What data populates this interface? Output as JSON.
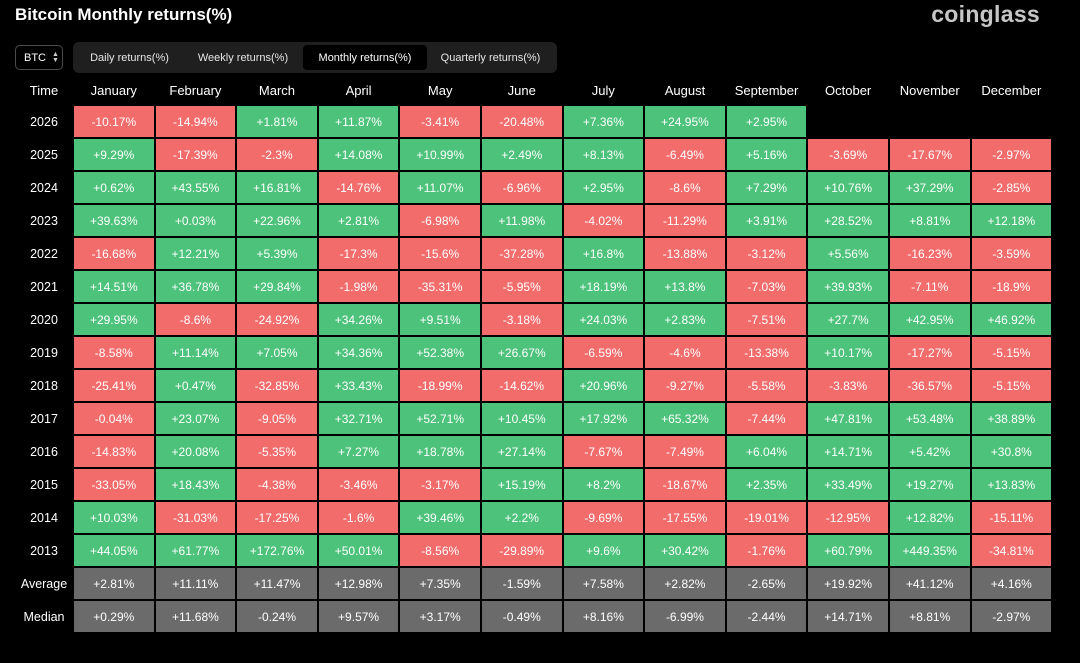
{
  "header": {
    "title": "Bitcoin Monthly returns(%)",
    "brand": "coinglass"
  },
  "asset_select": {
    "value": "BTC"
  },
  "tabs": [
    {
      "label": "Daily returns(%)",
      "active": false
    },
    {
      "label": "Weekly returns(%)",
      "active": false
    },
    {
      "label": "Monthly returns(%)",
      "active": true
    },
    {
      "label": "Quarterly returns(%)",
      "active": false
    }
  ],
  "colors": {
    "positive": "#4cc27a",
    "negative": "#f26c6c",
    "summary": "#6b6b6b"
  },
  "table": {
    "columns": [
      "Time",
      "January",
      "February",
      "March",
      "April",
      "May",
      "June",
      "July",
      "August",
      "September",
      "October",
      "November",
      "December"
    ],
    "rows": [
      {
        "year": "2026",
        "values": [
          "-10.17%",
          "-14.94%",
          "+1.81%",
          "+11.87%",
          "-3.41%",
          "-20.48%",
          "+7.36%",
          "+24.95%",
          "+2.95%",
          "",
          "",
          ""
        ]
      },
      {
        "year": "2025",
        "values": [
          "+9.29%",
          "-17.39%",
          "-2.3%",
          "+14.08%",
          "+10.99%",
          "+2.49%",
          "+8.13%",
          "-6.49%",
          "+5.16%",
          "-3.69%",
          "-17.67%",
          "-2.97%"
        ]
      },
      {
        "year": "2024",
        "values": [
          "+0.62%",
          "+43.55%",
          "+16.81%",
          "-14.76%",
          "+11.07%",
          "-6.96%",
          "+2.95%",
          "-8.6%",
          "+7.29%",
          "+10.76%",
          "+37.29%",
          "-2.85%"
        ]
      },
      {
        "year": "2023",
        "values": [
          "+39.63%",
          "+0.03%",
          "+22.96%",
          "+2.81%",
          "-6.98%",
          "+11.98%",
          "-4.02%",
          "-11.29%",
          "+3.91%",
          "+28.52%",
          "+8.81%",
          "+12.18%"
        ]
      },
      {
        "year": "2022",
        "values": [
          "-16.68%",
          "+12.21%",
          "+5.39%",
          "-17.3%",
          "-15.6%",
          "-37.28%",
          "+16.8%",
          "-13.88%",
          "-3.12%",
          "+5.56%",
          "-16.23%",
          "-3.59%"
        ]
      },
      {
        "year": "2021",
        "values": [
          "+14.51%",
          "+36.78%",
          "+29.84%",
          "-1.98%",
          "-35.31%",
          "-5.95%",
          "+18.19%",
          "+13.8%",
          "-7.03%",
          "+39.93%",
          "-7.11%",
          "-18.9%"
        ]
      },
      {
        "year": "2020",
        "values": [
          "+29.95%",
          "-8.6%",
          "-24.92%",
          "+34.26%",
          "+9.51%",
          "-3.18%",
          "+24.03%",
          "+2.83%",
          "-7.51%",
          "+27.7%",
          "+42.95%",
          "+46.92%"
        ]
      },
      {
        "year": "2019",
        "values": [
          "-8.58%",
          "+11.14%",
          "+7.05%",
          "+34.36%",
          "+52.38%",
          "+26.67%",
          "-6.59%",
          "-4.6%",
          "-13.38%",
          "+10.17%",
          "-17.27%",
          "-5.15%"
        ]
      },
      {
        "year": "2018",
        "values": [
          "-25.41%",
          "+0.47%",
          "-32.85%",
          "+33.43%",
          "-18.99%",
          "-14.62%",
          "+20.96%",
          "-9.27%",
          "-5.58%",
          "-3.83%",
          "-36.57%",
          "-5.15%"
        ]
      },
      {
        "year": "2017",
        "values": [
          "-0.04%",
          "+23.07%",
          "-9.05%",
          "+32.71%",
          "+52.71%",
          "+10.45%",
          "+17.92%",
          "+65.32%",
          "-7.44%",
          "+47.81%",
          "+53.48%",
          "+38.89%"
        ]
      },
      {
        "year": "2016",
        "values": [
          "-14.83%",
          "+20.08%",
          "-5.35%",
          "+7.27%",
          "+18.78%",
          "+27.14%",
          "-7.67%",
          "-7.49%",
          "+6.04%",
          "+14.71%",
          "+5.42%",
          "+30.8%"
        ]
      },
      {
        "year": "2015",
        "values": [
          "-33.05%",
          "+18.43%",
          "-4.38%",
          "-3.46%",
          "-3.17%",
          "+15.19%",
          "+8.2%",
          "-18.67%",
          "+2.35%",
          "+33.49%",
          "+19.27%",
          "+13.83%"
        ]
      },
      {
        "year": "2014",
        "values": [
          "+10.03%",
          "-31.03%",
          "-17.25%",
          "-1.6%",
          "+39.46%",
          "+2.2%",
          "-9.69%",
          "-17.55%",
          "-19.01%",
          "-12.95%",
          "+12.82%",
          "-15.11%"
        ]
      },
      {
        "year": "2013",
        "values": [
          "+44.05%",
          "+61.77%",
          "+172.76%",
          "+50.01%",
          "-8.56%",
          "-29.89%",
          "+9.6%",
          "+30.42%",
          "-1.76%",
          "+60.79%",
          "+449.35%",
          "-34.81%"
        ]
      },
      {
        "year": "Average",
        "summary": true,
        "values": [
          "+2.81%",
          "+11.11%",
          "+11.47%",
          "+12.98%",
          "+7.35%",
          "-1.59%",
          "+7.58%",
          "+2.82%",
          "-2.65%",
          "+19.92%",
          "+41.12%",
          "+4.16%"
        ]
      },
      {
        "year": "Median",
        "summary": true,
        "values": [
          "+0.29%",
          "+11.68%",
          "-0.24%",
          "+9.57%",
          "+3.17%",
          "-0.49%",
          "+8.16%",
          "-6.99%",
          "-2.44%",
          "+14.71%",
          "+8.81%",
          "-2.97%"
        ]
      }
    ]
  }
}
